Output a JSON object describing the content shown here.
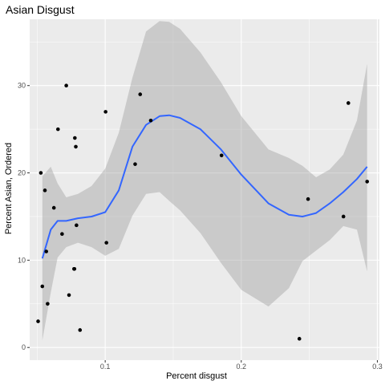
{
  "chart_data": {
    "type": "scatter",
    "title": "Asian Disgust",
    "xlabel": "Percent disgust",
    "ylabel": "Percent Asian, Ordered",
    "xlim": [
      0.0445,
      0.3015
    ],
    "ylim": [
      -1.45,
      37.6
    ],
    "x_ticks": [
      {
        "value": 0.1,
        "label": "0.1"
      },
      {
        "value": 0.2,
        "label": "0.2"
      },
      {
        "value": 0.3,
        "label": "0.3"
      }
    ],
    "y_ticks": [
      {
        "value": 0,
        "label": "0"
      },
      {
        "value": 10,
        "label": "10"
      },
      {
        "value": 20,
        "label": "20"
      },
      {
        "value": 30,
        "label": "30"
      }
    ],
    "grid": true,
    "points": [
      {
        "x": 0.0507,
        "y": 3
      },
      {
        "x": 0.0527,
        "y": 20
      },
      {
        "x": 0.0538,
        "y": 7
      },
      {
        "x": 0.0557,
        "y": 18
      },
      {
        "x": 0.0567,
        "y": 11
      },
      {
        "x": 0.0577,
        "y": 5
      },
      {
        "x": 0.0623,
        "y": 16
      },
      {
        "x": 0.0653,
        "y": 25
      },
      {
        "x": 0.0683,
        "y": 13
      },
      {
        "x": 0.0714,
        "y": 30
      },
      {
        "x": 0.0734,
        "y": 6
      },
      {
        "x": 0.0771,
        "y": 9
      },
      {
        "x": 0.0774,
        "y": 9
      },
      {
        "x": 0.0777,
        "y": 24
      },
      {
        "x": 0.0784,
        "y": 23
      },
      {
        "x": 0.0789,
        "y": 14
      },
      {
        "x": 0.0815,
        "y": 2
      },
      {
        "x": 0.1003,
        "y": 27
      },
      {
        "x": 0.1009,
        "y": 12
      },
      {
        "x": 0.122,
        "y": 21
      },
      {
        "x": 0.1257,
        "y": 29
      },
      {
        "x": 0.1335,
        "y": 26
      },
      {
        "x": 0.1855,
        "y": 22
      },
      {
        "x": 0.2427,
        "y": 1
      },
      {
        "x": 0.2491,
        "y": 17
      },
      {
        "x": 0.2751,
        "y": 15
      },
      {
        "x": 0.2787,
        "y": 28
      },
      {
        "x": 0.2925,
        "y": 19
      }
    ],
    "smooth": {
      "method": "loess",
      "x": [
        0.0538,
        0.06,
        0.065,
        0.0714,
        0.08,
        0.09,
        0.1,
        0.11,
        0.12,
        0.13,
        0.14,
        0.147,
        0.155,
        0.17,
        0.185,
        0.2,
        0.22,
        0.235,
        0.245,
        0.255,
        0.265,
        0.275,
        0.285,
        0.2925
      ],
      "y": [
        10.2,
        13.5,
        14.5,
        14.5,
        14.8,
        15.0,
        15.5,
        18.0,
        23.0,
        25.5,
        26.5,
        26.6,
        26.3,
        25.0,
        22.7,
        19.8,
        16.5,
        15.2,
        15.0,
        15.4,
        16.5,
        17.8,
        19.3,
        20.7
      ],
      "lower": [
        0.8,
        6.3,
        10.3,
        11.5,
        12.0,
        11.5,
        10.5,
        11.3,
        15.1,
        17.6,
        17.8,
        16.8,
        15.7,
        13.1,
        9.7,
        6.6,
        4.7,
        6.8,
        9.9,
        11.1,
        12.3,
        13.9,
        13.5,
        8.7
      ],
      "upper": [
        19.6,
        20.7,
        18.8,
        17.2,
        17.6,
        18.5,
        20.5,
        24.6,
        30.9,
        36.2,
        37.4,
        37.3,
        36.5,
        33.8,
        30.4,
        26.5,
        22.7,
        21.7,
        20.8,
        19.5,
        20.4,
        22.1,
        26.0,
        32.5
      ]
    },
    "colors": {
      "panel_bg": "#ebebeb",
      "grid_major": "#ffffff",
      "point": "#000000",
      "smooth_line": "#3366ff",
      "ribbon": "#999999"
    }
  }
}
